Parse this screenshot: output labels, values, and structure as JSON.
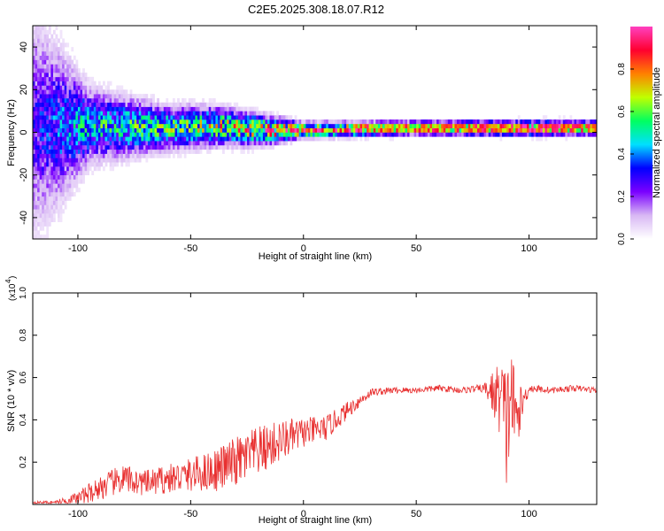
{
  "title": "C2E5.2025.308.18.07.R12",
  "chart_data": [
    {
      "type": "heatmap",
      "xlabel": "Height of straight line (km)",
      "ylabel": "Frequency (Hz)",
      "xlim": [
        -120,
        130
      ],
      "ylim": [
        -50,
        50
      ],
      "xticks": [
        -100,
        -50,
        0,
        50,
        100
      ],
      "yticks": [
        -40,
        -20,
        0,
        20,
        40
      ],
      "colorbar": {
        "label": "Normalized spectral amplitude",
        "range": [
          0,
          1
        ],
        "ticks": [
          "0.0",
          "0.2",
          "0.4",
          "0.6",
          "0.8"
        ],
        "colors": [
          "#ffffff",
          "#d8b8f4",
          "#7a00ff",
          "#0000ff",
          "#00e0ff",
          "#00ff60",
          "#c0ff00",
          "#ff8000",
          "#ff0030",
          "#ff40c0"
        ]
      },
      "description_points": [
        {
          "x": -120,
          "center_hz": 2,
          "spread_hz": 45,
          "peak": 0.25
        },
        {
          "x": -95,
          "center_hz": 2,
          "spread_hz": 15,
          "peak": 0.45
        },
        {
          "x": -60,
          "center_hz": 1,
          "spread_hz": 9,
          "peak": 0.5
        },
        {
          "x": -40,
          "center_hz": 2,
          "spread_hz": 8,
          "peak": 0.6
        },
        {
          "x": -18,
          "center_hz": 0,
          "spread_hz": 6,
          "peak": 0.7
        },
        {
          "x": 0,
          "center_hz": 0,
          "spread_hz": 3,
          "peak": 0.85
        },
        {
          "x": 50,
          "center_hz": 1,
          "spread_hz": 3,
          "peak": 0.6
        },
        {
          "x": 100,
          "center_hz": 1,
          "spread_hz": 3,
          "peak": 0.9
        },
        {
          "x": 130,
          "center_hz": 1,
          "spread_hz": 3,
          "peak": 0.7
        }
      ]
    },
    {
      "type": "line",
      "xlabel": "Height of straight line (km)",
      "ylabel": "SNR (10 * v/v)",
      "scale_label": "(x10",
      "scale_exp": "4",
      "scale_close": ")",
      "xlim": [
        -120,
        130
      ],
      "ylim": [
        0,
        1.0
      ],
      "xticks": [
        -100,
        -50,
        0,
        50,
        100
      ],
      "yticks": [
        0.2,
        0.4,
        0.6,
        0.8,
        1.0
      ],
      "series": [
        {
          "name": "SNR",
          "color": "#e83030",
          "x": [
            -120,
            -110,
            -100,
            -90,
            -80,
            -70,
            -60,
            -50,
            -40,
            -30,
            -20,
            -10,
            0,
            10,
            20,
            30,
            40,
            50,
            60,
            70,
            80,
            88,
            90,
            92,
            94,
            100,
            110,
            120,
            130
          ],
          "y": [
            0.01,
            0.01,
            0.03,
            0.08,
            0.12,
            0.1,
            0.12,
            0.14,
            0.16,
            0.2,
            0.25,
            0.3,
            0.34,
            0.36,
            0.45,
            0.53,
            0.54,
            0.54,
            0.55,
            0.54,
            0.55,
            0.5,
            0.35,
            0.55,
            0.4,
            0.55,
            0.54,
            0.55,
            0.54
          ],
          "noise": [
            0.005,
            0.008,
            0.03,
            0.06,
            0.07,
            0.06,
            0.07,
            0.08,
            0.1,
            0.12,
            0.12,
            0.1,
            0.07,
            0.06,
            0.04,
            0.02,
            0.015,
            0.015,
            0.015,
            0.015,
            0.02,
            0.2,
            0.3,
            0.3,
            0.15,
            0.02,
            0.015,
            0.015,
            0.015
          ]
        }
      ]
    }
  ]
}
